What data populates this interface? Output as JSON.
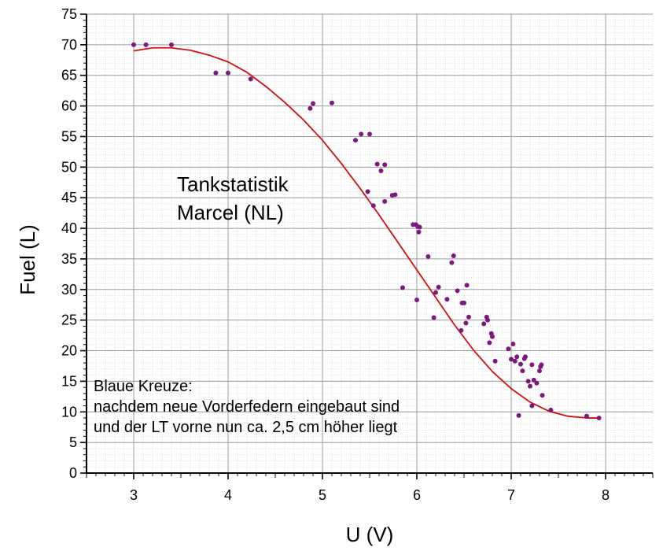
{
  "chart_data": {
    "type": "scatter",
    "xlabel": "U (V)",
    "ylabel": "Fuel (L)",
    "xlim": [
      2.5,
      8.5
    ],
    "ylim": [
      0,
      75
    ],
    "xticks": [
      3,
      4,
      5,
      6,
      7,
      8
    ],
    "yticks": [
      0,
      5,
      10,
      15,
      20,
      25,
      30,
      35,
      40,
      45,
      50,
      55,
      60,
      65,
      70,
      75
    ],
    "grid": true,
    "minor_grid": true,
    "colors": {
      "points": "#7b1a7b",
      "fit": "#cc1111",
      "grid": "#9a9a9a",
      "minor_grid": "#c8c8c8"
    },
    "annotations": {
      "title_lines": [
        "Tankstatistik",
        "Marcel (NL)"
      ],
      "note_lines": [
        "Blaue Kreuze:",
        "nachdem neue Vorderfedern eingebaut sind",
        "und der LT vorne nun ca. 2,5 cm höher liegt"
      ]
    },
    "series": [
      {
        "type": "scatter",
        "x": [
          3.0,
          3.13,
          3.4,
          3.87,
          4.0,
          4.24,
          4.87,
          4.9,
          5.1,
          5.35,
          5.41,
          5.5,
          5.48,
          5.54,
          5.58,
          5.62,
          5.66,
          5.66,
          5.74,
          5.77,
          5.85,
          5.96,
          5.99,
          6.01,
          6.03,
          6.02,
          6.0,
          6.12,
          6.18,
          6.2,
          6.23,
          6.32,
          6.37,
          6.39,
          6.43,
          6.47,
          6.48,
          6.5,
          6.52,
          6.53,
          6.55,
          6.71,
          6.74,
          6.75,
          6.77,
          6.79,
          6.8,
          6.83,
          6.97,
          7.0,
          7.02,
          7.04,
          7.06,
          7.08,
          7.1,
          7.12,
          7.14,
          7.15,
          7.18,
          7.2,
          7.22,
          7.22,
          7.24,
          7.27,
          7.3,
          7.31,
          7.32,
          7.33,
          7.42,
          7.8,
          7.93
        ],
        "y": [
          70,
          70,
          70,
          65.4,
          65.4,
          64.4,
          59.6,
          60.4,
          60.5,
          54.4,
          55.4,
          55.4,
          46.0,
          43.7,
          50.5,
          49.4,
          50.4,
          44.4,
          45.4,
          45.5,
          30.3,
          40.6,
          40.6,
          40.3,
          40.2,
          39.4,
          28.3,
          35.4,
          25.4,
          29.5,
          30.4,
          28.4,
          34.4,
          35.5,
          29.8,
          23.3,
          27.8,
          27.8,
          24.5,
          30.7,
          25.5,
          24.4,
          25.5,
          25.0,
          21.3,
          22.8,
          22.3,
          18.3,
          20.3,
          18.6,
          21.1,
          18.3,
          19.0,
          9.4,
          17.8,
          16.7,
          18.7,
          19.0,
          15.0,
          14.2,
          17.7,
          11.0,
          15.2,
          14.7,
          16.7,
          17.4,
          17.7,
          12.7,
          10.3,
          9.3,
          9.0
        ]
      },
      {
        "type": "line",
        "name": "fit",
        "x": [
          3.0,
          3.2,
          3.4,
          3.6,
          3.8,
          4.0,
          4.2,
          4.4,
          4.6,
          4.8,
          5.0,
          5.2,
          5.4,
          5.6,
          5.8,
          6.0,
          6.2,
          6.4,
          6.6,
          6.8,
          7.0,
          7.2,
          7.4,
          7.6,
          7.8,
          7.95
        ],
        "y": [
          69.0,
          69.5,
          69.5,
          69.1,
          68.3,
          67.2,
          65.5,
          63.2,
          60.6,
          57.7,
          54.4,
          50.6,
          46.5,
          42.2,
          37.7,
          33.2,
          28.7,
          24.2,
          20.1,
          16.6,
          13.8,
          11.6,
          10.1,
          9.3,
          9.0,
          9.0
        ]
      }
    ]
  }
}
